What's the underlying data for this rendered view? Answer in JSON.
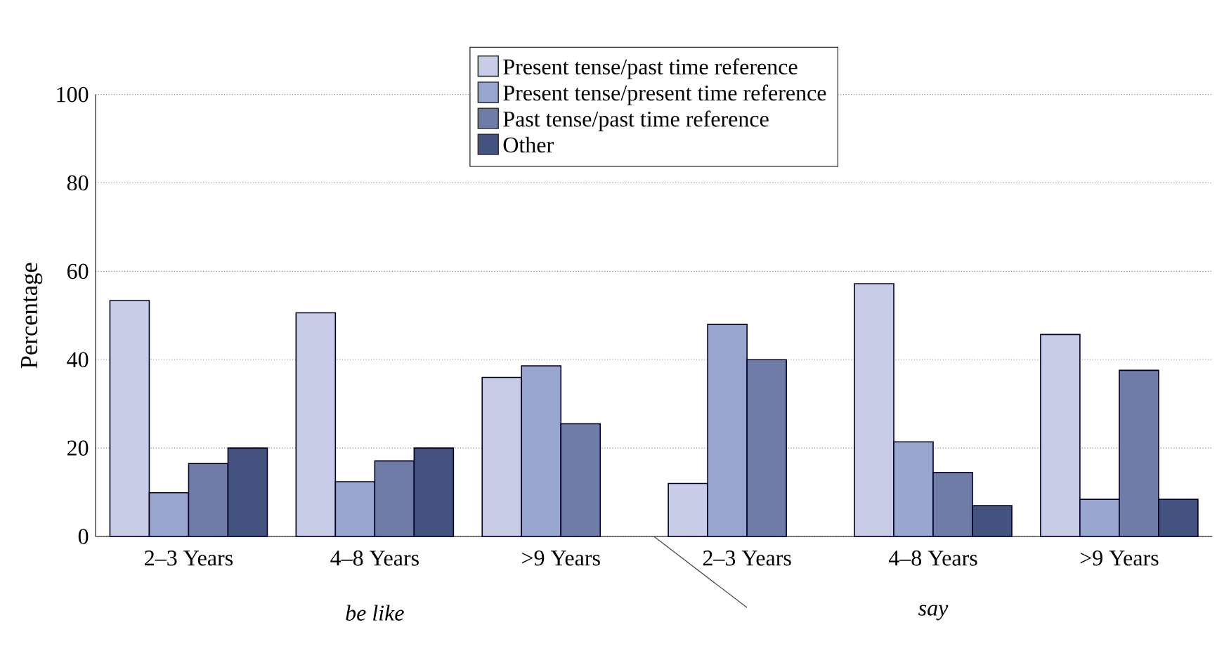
{
  "chart_data": {
    "type": "bar",
    "ylabel": "Percentage",
    "categories": [
      "2–3 Years",
      "4–8 Years",
      ">9 Years",
      "2–3 Years",
      "4–8 Years",
      ">9 Years"
    ],
    "series": [
      {
        "name": "Present tense/past time reference",
        "color": "#c8cce6",
        "values": [
          53.4,
          50.6,
          36,
          12,
          57.2,
          45.7
        ]
      },
      {
        "name": "Present tense/present time reference",
        "color": "#98a5cf",
        "values": [
          9.9,
          12.4,
          38.6,
          48,
          21.4,
          8.4
        ]
      },
      {
        "name": "Past tense/past time reference",
        "color": "#6f7ca8",
        "values": [
          16.5,
          17.1,
          25.5,
          40,
          14.5,
          37.6
        ]
      },
      {
        "name": "Other",
        "color": "#43527e",
        "values": [
          20,
          20,
          null,
          null,
          7,
          8.4
        ]
      }
    ],
    "annotations": [
      "be like",
      "say"
    ],
    "ylim": [
      0,
      100
    ],
    "yticks": [
      0,
      20,
      40,
      60,
      80,
      100
    ],
    "grid": "y",
    "legend": "top"
  }
}
